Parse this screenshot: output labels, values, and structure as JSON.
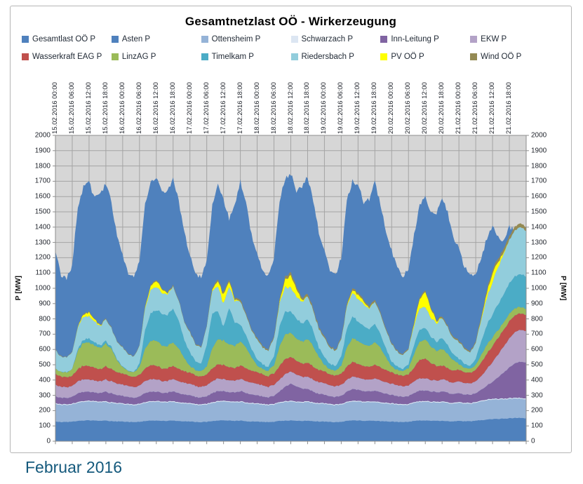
{
  "title": "Gesamtnetzlast OÖ - Wirkerzeugung",
  "footer": "Februar 2016",
  "legend": [
    {
      "label": "Gesamtlast OÖ P",
      "color": "#4F81BD"
    },
    {
      "label": "Asten P",
      "color": "#4F81BD"
    },
    {
      "label": "Ottensheim P",
      "color": "#95B3D7"
    },
    {
      "label": "Schwarzach P",
      "color": "#DCE6F2"
    },
    {
      "label": "Inn-Leitung P",
      "color": "#8064A2"
    },
    {
      "label": "EKW P",
      "color": "#B3A2C7"
    },
    {
      "label": "Wasserkraft EAG P",
      "color": "#C0504D"
    },
    {
      "label": "LinzAG P",
      "color": "#9BBB59"
    },
    {
      "label": "Timelkam P",
      "color": "#4BACC6"
    },
    {
      "label": "Riedersbach P",
      "color": "#92CDDC"
    },
    {
      "label": "PV OÖ P",
      "color": "#FFFF00"
    },
    {
      "label": "Wind OÖ P",
      "color": "#948A54"
    }
  ],
  "chart_data": {
    "type": "area",
    "title": "Gesamtnetzlast OÖ - Wirkerzeugung",
    "ylabel_left": "P [MW]",
    "ylabel_right": "P [MW]",
    "ylim": [
      0,
      2000
    ],
    "y_ticks": [
      "0",
      "100",
      "200",
      "300",
      "400",
      "500",
      "600",
      "700",
      "800",
      "900",
      "1000",
      "1100",
      "1200",
      "1300",
      "1400",
      "1500",
      "1600",
      "1700",
      "1800",
      "1900",
      "2000"
    ],
    "x_ticks": [
      "15.02.2016 00:00",
      "15.02.2016 06:00",
      "15.02.2016 12:00",
      "15.02.2016 18:00",
      "16.02.2016 00:00",
      "16.02.2016 06:00",
      "16.02.2016 12:00",
      "16.02.2016 18:00",
      "17.02.2016 00:00",
      "17.02.2016 06:00",
      "17.02.2016 12:00",
      "17.02.2016 18:00",
      "18.02.2016 00:00",
      "18.02.2016 06:00",
      "18.02.2016 12:00",
      "18.02.2016 18:00",
      "19.02.2016 00:00",
      "19.02.2016 06:00",
      "19.02.2016 12:00",
      "19.02.2016 18:00",
      "20.02.2016 00:00",
      "20.02.2016 06:00",
      "20.02.2016 12:00",
      "20.02.2016 18:00",
      "21.02.2016 00:00",
      "21.02.2016 06:00",
      "21.02.2016 12:00",
      "21.02.2016 18:00"
    ],
    "x_intervals": 28,
    "x_step_hours": 2,
    "plot_bg": "#D6D6D6",
    "grid_color": "#A4A4A4",
    "border_color": "#8E8E8E",
    "background_series": {
      "id": "gesamtlast-oo-p",
      "name": "Gesamtlast OÖ P",
      "color": "#4F81BD",
      "jitter": 16,
      "values": [
        1230,
        1090,
        1060,
        1150,
        1540,
        1660,
        1690,
        1590,
        1610,
        1690,
        1560,
        1340,
        1210,
        1090,
        1070,
        1190,
        1560,
        1700,
        1730,
        1620,
        1640,
        1710,
        1570,
        1360,
        1220,
        1100,
        1070,
        1180,
        1550,
        1690,
        1580,
        1450,
        1550,
        1700,
        1560,
        1350,
        1230,
        1110,
        1080,
        1200,
        1580,
        1720,
        1750,
        1640,
        1660,
        1730,
        1580,
        1370,
        1240,
        1120,
        1090,
        1200,
        1570,
        1700,
        1680,
        1560,
        1580,
        1690,
        1550,
        1360,
        1250,
        1130,
        1080,
        1120,
        1350,
        1550,
        1600,
        1500,
        1480,
        1600,
        1500,
        1330,
        1260,
        1140,
        1080,
        1090,
        1200,
        1330,
        1400,
        1330,
        1300,
        1400,
        1380,
        1320,
        1260
      ]
    },
    "series": [
      {
        "id": "asten-p",
        "name": "Asten P",
        "color": "#4F81BD",
        "jitter": 2,
        "values": [
          128,
          126,
          125,
          127,
          132,
          135,
          136,
          134,
          133,
          134,
          131,
          129,
          128,
          126,
          125,
          127,
          132,
          135,
          136,
          134,
          133,
          134,
          131,
          129,
          128,
          126,
          125,
          127,
          132,
          135,
          136,
          134,
          133,
          134,
          131,
          129,
          128,
          126,
          125,
          127,
          132,
          135,
          136,
          134,
          133,
          134,
          131,
          129,
          128,
          126,
          125,
          127,
          132,
          135,
          136,
          134,
          133,
          134,
          131,
          129,
          128,
          126,
          125,
          127,
          132,
          135,
          136,
          134,
          133,
          134,
          131,
          129,
          132,
          130,
          130,
          133,
          138,
          142,
          145,
          146,
          147,
          150,
          152,
          152,
          150
        ]
      },
      {
        "id": "ottensheim-p",
        "name": "Ottensheim P",
        "color": "#95B3D7",
        "jitter": 2,
        "values": [
          115,
          112,
          110,
          112,
          118,
          122,
          123,
          121,
          120,
          121,
          118,
          116,
          115,
          112,
          110,
          112,
          118,
          122,
          123,
          121,
          120,
          121,
          118,
          116,
          115,
          112,
          110,
          112,
          118,
          122,
          123,
          121,
          120,
          121,
          118,
          116,
          115,
          112,
          110,
          112,
          118,
          122,
          123,
          121,
          120,
          121,
          118,
          116,
          115,
          112,
          110,
          112,
          118,
          122,
          123,
          121,
          120,
          121,
          118,
          116,
          115,
          112,
          110,
          112,
          118,
          122,
          123,
          121,
          120,
          121,
          118,
          116,
          118,
          115,
          114,
          117,
          123,
          126,
          127,
          126,
          126,
          127,
          126,
          125,
          124
        ]
      },
      {
        "id": "schwarzach-p",
        "name": "Schwarzach P",
        "color": "#DCE6F2",
        "jitter": 0,
        "values": [
          6,
          6,
          6,
          6,
          6,
          6,
          6,
          6,
          6,
          6,
          6,
          6,
          6,
          6,
          6,
          6,
          6,
          6,
          6,
          6,
          6,
          6,
          6,
          6,
          6,
          6,
          6,
          6,
          6,
          6,
          6,
          6,
          6,
          6,
          6,
          6,
          6,
          6,
          6,
          6,
          6,
          6,
          6,
          6,
          6,
          6,
          6,
          6,
          6,
          6,
          6,
          6,
          6,
          6,
          6,
          6,
          6,
          6,
          6,
          6,
          6,
          6,
          6,
          6,
          6,
          6,
          6,
          6,
          6,
          6,
          6,
          6,
          6,
          6,
          6,
          6,
          6,
          6,
          6,
          6,
          6,
          6,
          6,
          6,
          6
        ]
      },
      {
        "id": "inn-leitung-p",
        "name": "Inn-Leitung P",
        "color": "#8064A2",
        "jitter": 2,
        "values": [
          45,
          42,
          40,
          44,
          55,
          60,
          58,
          55,
          56,
          62,
          58,
          50,
          48,
          44,
          42,
          46,
          58,
          62,
          60,
          56,
          58,
          64,
          60,
          52,
          50,
          46,
          44,
          48,
          60,
          65,
          62,
          58,
          60,
          66,
          62,
          54,
          52,
          48,
          46,
          52,
          70,
          95,
          110,
          100,
          85,
          80,
          70,
          60,
          55,
          50,
          48,
          52,
          65,
          75,
          72,
          68,
          66,
          70,
          65,
          58,
          55,
          50,
          48,
          50,
          60,
          70,
          68,
          64,
          62,
          66,
          62,
          56,
          58,
          54,
          52,
          56,
          70,
          90,
          110,
          140,
          170,
          200,
          225,
          235,
          235
        ]
      },
      {
        "id": "ekw-p",
        "name": "EKW P",
        "color": "#B3A2C7",
        "jitter": 2,
        "values": [
          75,
          72,
          70,
          72,
          78,
          82,
          80,
          78,
          77,
          80,
          78,
          76,
          75,
          72,
          70,
          72,
          78,
          82,
          80,
          78,
          77,
          80,
          78,
          76,
          75,
          72,
          70,
          72,
          78,
          82,
          80,
          78,
          77,
          80,
          78,
          76,
          75,
          72,
          70,
          72,
          78,
          82,
          80,
          78,
          77,
          80,
          78,
          76,
          75,
          72,
          70,
          72,
          78,
          82,
          80,
          78,
          77,
          80,
          78,
          76,
          74,
          71,
          69,
          71,
          77,
          81,
          79,
          77,
          76,
          79,
          77,
          75,
          78,
          75,
          74,
          78,
          90,
          110,
          130,
          150,
          170,
          190,
          205,
          210,
          205
        ]
      },
      {
        "id": "wasserkraft-eag-p",
        "name": "Wasserkraft EAG P",
        "color": "#C0504D",
        "jitter": 3,
        "values": [
          70,
          66,
          64,
          68,
          80,
          90,
          88,
          82,
          80,
          85,
          80,
          74,
          72,
          68,
          66,
          70,
          82,
          92,
          90,
          84,
          82,
          87,
          82,
          76,
          74,
          70,
          68,
          72,
          84,
          94,
          92,
          86,
          84,
          88,
          84,
          78,
          76,
          72,
          70,
          74,
          88,
          100,
          96,
          90,
          86,
          92,
          86,
          80,
          76,
          72,
          70,
          74,
          86,
          96,
          92,
          88,
          84,
          90,
          84,
          78,
          74,
          70,
          68,
          72,
          90,
          120,
          130,
          110,
          95,
          90,
          84,
          78,
          76,
          72,
          70,
          74,
          88,
          100,
          105,
          108,
          110,
          112,
          110,
          108,
          105
        ]
      },
      {
        "id": "linzag-p",
        "name": "LinzAG P",
        "color": "#9BBB59",
        "jitter": 3,
        "values": [
          35,
          30,
          30,
          45,
          120,
          150,
          155,
          145,
          140,
          150,
          130,
          80,
          40,
          32,
          32,
          50,
          130,
          160,
          165,
          150,
          145,
          155,
          135,
          85,
          42,
          34,
          34,
          52,
          135,
          165,
          160,
          148,
          146,
          158,
          138,
          88,
          44,
          36,
          36,
          54,
          130,
          160,
          158,
          146,
          144,
          155,
          135,
          86,
          42,
          34,
          34,
          52,
          125,
          155,
          150,
          140,
          138,
          148,
          128,
          82,
          40,
          32,
          32,
          40,
          90,
          120,
          125,
          110,
          100,
          110,
          95,
          70,
          38,
          30,
          28,
          32,
          50,
          60,
          58,
          52,
          48,
          50,
          45,
          42,
          40
        ]
      },
      {
        "id": "timelkam-p",
        "name": "Timelkam P",
        "color": "#4BACC6",
        "jitter": 4,
        "values": [
          0,
          0,
          0,
          0,
          10,
          20,
          25,
          20,
          15,
          20,
          10,
          5,
          5,
          0,
          0,
          20,
          120,
          180,
          200,
          210,
          200,
          220,
          180,
          120,
          90,
          60,
          50,
          140,
          230,
          180,
          90,
          240,
          150,
          110,
          80,
          50,
          40,
          30,
          25,
          60,
          130,
          150,
          140,
          130,
          120,
          130,
          100,
          60,
          50,
          35,
          30,
          60,
          120,
          140,
          130,
          120,
          110,
          120,
          90,
          55,
          30,
          20,
          15,
          25,
          60,
          80,
          75,
          65,
          60,
          70,
          55,
          40,
          35,
          25,
          20,
          40,
          90,
          130,
          150,
          170,
          185,
          200,
          210,
          215,
          210
        ]
      },
      {
        "id": "riedersbach-p",
        "name": "Riedersbach P",
        "color": "#92CDDC",
        "jitter": 4,
        "values": [
          120,
          100,
          95,
          110,
          140,
          150,
          145,
          135,
          130,
          140,
          125,
          115,
          125,
          105,
          100,
          115,
          145,
          155,
          150,
          140,
          135,
          145,
          130,
          120,
          130,
          110,
          105,
          120,
          150,
          160,
          150,
          140,
          140,
          150,
          135,
          120,
          130,
          110,
          105,
          120,
          150,
          160,
          155,
          145,
          140,
          150,
          135,
          120,
          125,
          105,
          100,
          115,
          145,
          155,
          150,
          140,
          135,
          145,
          130,
          118,
          115,
          95,
          90,
          100,
          125,
          140,
          135,
          125,
          120,
          130,
          115,
          105,
          110,
          95,
          90,
          105,
          140,
          180,
          210,
          240,
          265,
          285,
          300,
          305,
          300
        ]
      },
      {
        "id": "pv-oo-p",
        "name": "PV OÖ P",
        "color": "#FFFF00",
        "jitter": 0,
        "values": [
          0,
          0,
          0,
          0,
          5,
          15,
          25,
          15,
          5,
          0,
          0,
          0,
          0,
          0,
          0,
          0,
          8,
          25,
          40,
          25,
          8,
          0,
          0,
          0,
          0,
          0,
          0,
          0,
          10,
          35,
          60,
          35,
          10,
          0,
          0,
          0,
          0,
          0,
          0,
          0,
          12,
          50,
          80,
          50,
          12,
          0,
          0,
          0,
          0,
          0,
          0,
          0,
          6,
          18,
          30,
          18,
          6,
          0,
          0,
          0,
          0,
          0,
          0,
          0,
          15,
          60,
          100,
          60,
          15,
          0,
          0,
          0,
          0,
          0,
          0,
          0,
          10,
          35,
          60,
          35,
          10,
          0,
          0,
          0,
          0
        ]
      },
      {
        "id": "wind-oo-p",
        "name": "Wind OÖ P",
        "color": "#948A54",
        "jitter": 1,
        "values": [
          3,
          3,
          2,
          3,
          4,
          5,
          5,
          4,
          4,
          5,
          4,
          4,
          4,
          4,
          3,
          4,
          6,
          7,
          7,
          6,
          6,
          7,
          6,
          5,
          6,
          5,
          5,
          6,
          9,
          12,
          14,
          12,
          10,
          12,
          10,
          8,
          10,
          9,
          8,
          10,
          14,
          18,
          20,
          17,
          15,
          16,
          14,
          12,
          10,
          9,
          8,
          9,
          12,
          14,
          13,
          12,
          11,
          12,
          10,
          9,
          8,
          7,
          6,
          7,
          9,
          11,
          10,
          9,
          9,
          10,
          9,
          8,
          9,
          8,
          8,
          10,
          14,
          18,
          20,
          22,
          24,
          25,
          25,
          25,
          25
        ]
      }
    ]
  }
}
